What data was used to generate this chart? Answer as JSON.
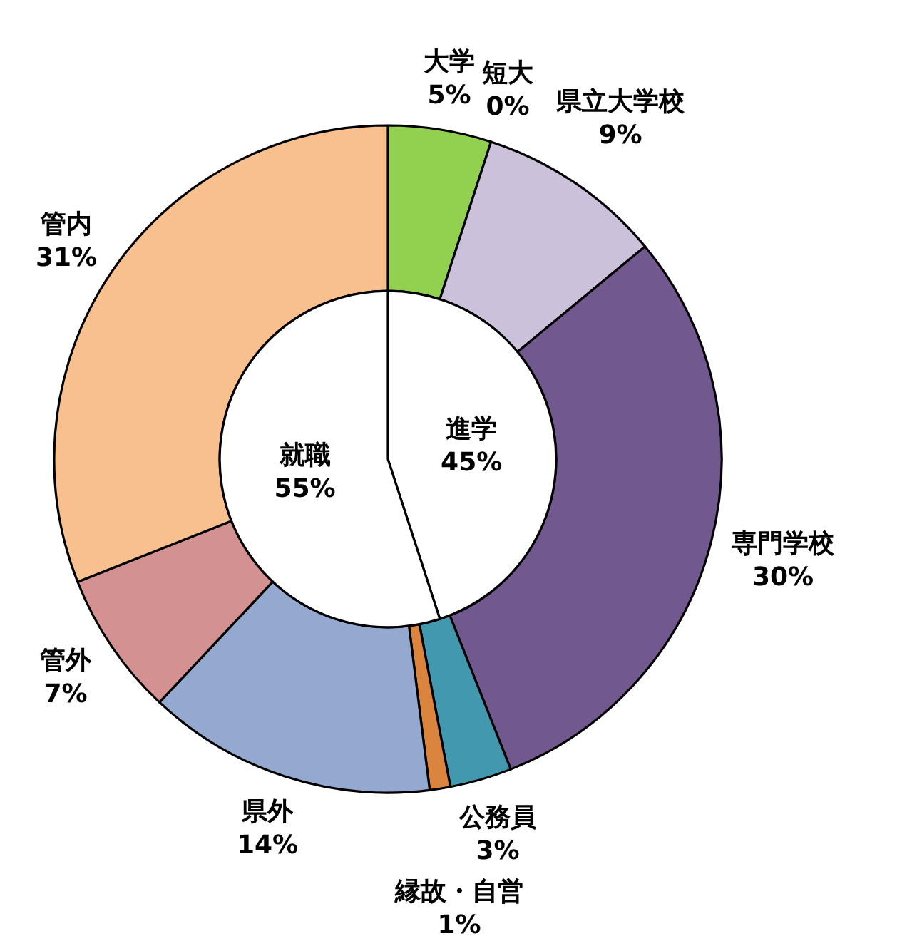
{
  "chart_data": [
    {
      "type": "donut",
      "categories": [
        "大学",
        "短大",
        "県立大学校",
        "専門学校",
        "公務員",
        "縁故・自営",
        "県外",
        "管外",
        "管内"
      ],
      "values": [
        5,
        0,
        9,
        30,
        3,
        1,
        14,
        7,
        31
      ],
      "value_labels": [
        "5%",
        "0%",
        "9%",
        "30%",
        "3%",
        "1%",
        "14%",
        "7%",
        "31%"
      ],
      "colors": [
        "#92d050",
        "#4f81bd",
        "#ccc1da",
        "#71588f",
        "#4198af",
        "#db843d",
        "#95a9d0",
        "#d39191",
        "#f9c08f"
      ]
    },
    {
      "type": "pie",
      "categories": [
        "進学",
        "就職"
      ],
      "values": [
        45,
        55
      ],
      "value_labels": [
        "45%",
        "55%"
      ],
      "colors": [
        "#ffffff",
        "#ffffff"
      ]
    }
  ]
}
